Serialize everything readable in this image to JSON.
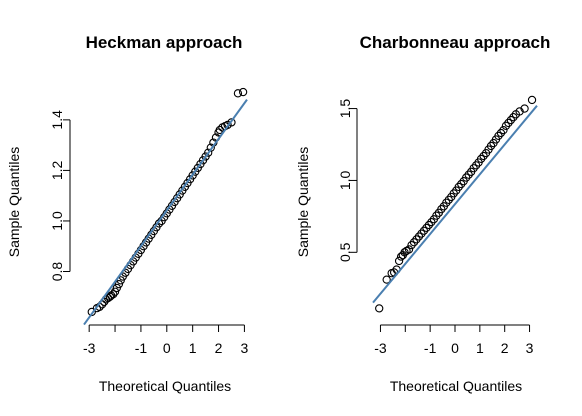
{
  "chart_data": [
    {
      "type": "scatter",
      "title": "Heckman approach",
      "xlabel": "Theoretical Quantiles",
      "ylabel": "Sample Quantiles",
      "xlim": [
        -3.2,
        3.1
      ],
      "ylim": [
        0.62,
        1.53
      ],
      "x_ticks": [
        -3,
        -2,
        -1,
        0,
        1,
        2,
        3
      ],
      "x_tick_labels": [
        "-3",
        "",
        "-1",
        "0",
        "1",
        "2",
        "3"
      ],
      "y_ticks": [
        0.8,
        1.0,
        1.2,
        1.4
      ],
      "y_tick_labels": [
        "0.8",
        "1.0",
        "1.2",
        "1.4"
      ],
      "reference_line": {
        "x": [
          -3.2,
          3.1
        ],
        "y": [
          0.59,
          1.48
        ],
        "color": "#4a7fb0"
      },
      "point_color": "#000000",
      "series": [
        {
          "x": [
            -2.9,
            -2.7,
            -2.6,
            -2.5,
            -2.42,
            -2.35,
            -2.27,
            -2.2,
            -2.15,
            -2.07,
            -2.0,
            -1.93,
            -1.85,
            -1.78,
            -1.7,
            -1.6,
            -1.5,
            -1.4,
            -1.3,
            -1.2,
            -1.1,
            -1.0,
            -0.9,
            -0.8,
            -0.7,
            -0.6,
            -0.5,
            -0.4,
            -0.3,
            -0.2,
            -0.1,
            0.0,
            0.1,
            0.2,
            0.3,
            0.4,
            0.5,
            0.6,
            0.7,
            0.8,
            0.9,
            1.0,
            1.1,
            1.2,
            1.3,
            1.4,
            1.5,
            1.6,
            1.7,
            1.8,
            1.9,
            2.0,
            2.05,
            2.15,
            2.25,
            2.35,
            2.5,
            2.75,
            2.95
          ],
          "y": [
            0.64,
            0.655,
            0.66,
            0.67,
            0.68,
            0.69,
            0.695,
            0.7,
            0.705,
            0.71,
            0.72,
            0.735,
            0.75,
            0.765,
            0.78,
            0.795,
            0.81,
            0.825,
            0.84,
            0.855,
            0.87,
            0.885,
            0.9,
            0.915,
            0.93,
            0.945,
            0.96,
            0.975,
            0.99,
            1.0,
            1.015,
            1.03,
            1.045,
            1.06,
            1.075,
            1.09,
            1.105,
            1.12,
            1.135,
            1.15,
            1.165,
            1.18,
            1.195,
            1.21,
            1.225,
            1.24,
            1.255,
            1.27,
            1.29,
            1.31,
            1.33,
            1.35,
            1.36,
            1.37,
            1.375,
            1.38,
            1.39,
            1.505,
            1.51
          ]
        }
      ]
    },
    {
      "type": "scatter",
      "title": "Charbonneau approach",
      "xlabel": "Theoretical Quantiles",
      "ylabel": "Sample Quantiles",
      "xlim": [
        -3.3,
        3.3
      ],
      "ylim": [
        0.05,
        1.65
      ],
      "x_ticks": [
        -3,
        -2,
        -1,
        0,
        1,
        2,
        3
      ],
      "x_tick_labels": [
        "-3",
        "",
        "-1",
        "0",
        "1",
        "2",
        "3"
      ],
      "y_ticks": [
        0.5,
        1.0,
        1.5
      ],
      "y_tick_labels": [
        "0.5",
        "1.0",
        "1.5"
      ],
      "reference_line": {
        "x": [
          -3.3,
          3.3
        ],
        "y": [
          0.15,
          1.52
        ],
        "color": "#4a7fb0"
      },
      "point_color": "#000000",
      "series": [
        {
          "x": [
            -3.05,
            -2.75,
            -2.55,
            -2.45,
            -2.35,
            -2.25,
            -2.17,
            -2.1,
            -2.03,
            -1.95,
            -1.85,
            -1.75,
            -1.65,
            -1.55,
            -1.45,
            -1.35,
            -1.25,
            -1.15,
            -1.05,
            -0.95,
            -0.85,
            -0.75,
            -0.65,
            -0.55,
            -0.45,
            -0.35,
            -0.25,
            -0.15,
            -0.05,
            0.05,
            0.15,
            0.25,
            0.35,
            0.45,
            0.55,
            0.65,
            0.75,
            0.85,
            0.95,
            1.05,
            1.15,
            1.25,
            1.35,
            1.45,
            1.55,
            1.65,
            1.75,
            1.85,
            1.95,
            2.05,
            2.15,
            2.25,
            2.35,
            2.45,
            2.6,
            2.8,
            3.1
          ],
          "y": [
            0.11,
            0.31,
            0.355,
            0.36,
            0.38,
            0.44,
            0.47,
            0.48,
            0.5,
            0.51,
            0.52,
            0.55,
            0.57,
            0.59,
            0.61,
            0.63,
            0.65,
            0.67,
            0.69,
            0.71,
            0.73,
            0.755,
            0.775,
            0.8,
            0.82,
            0.845,
            0.865,
            0.885,
            0.91,
            0.93,
            0.955,
            0.975,
            0.995,
            1.02,
            1.04,
            1.06,
            1.085,
            1.105,
            1.125,
            1.15,
            1.17,
            1.19,
            1.215,
            1.24,
            1.26,
            1.285,
            1.31,
            1.33,
            1.35,
            1.38,
            1.4,
            1.42,
            1.44,
            1.46,
            1.48,
            1.5,
            1.56
          ]
        }
      ]
    }
  ]
}
